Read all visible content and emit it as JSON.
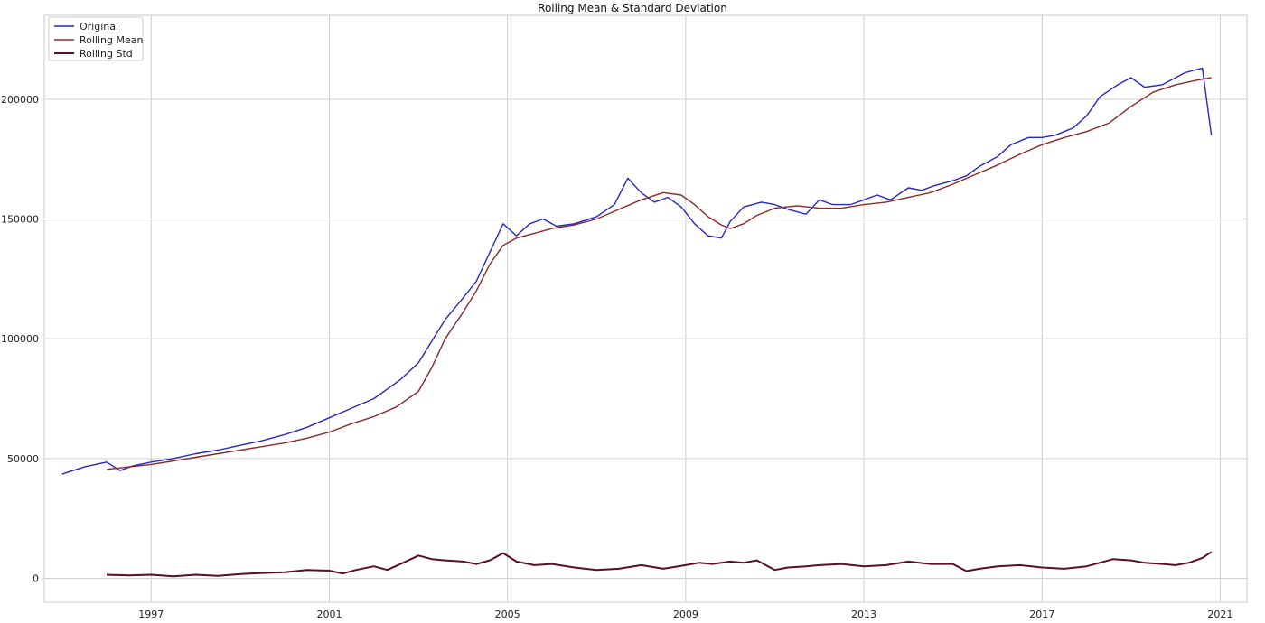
{
  "chart_data": {
    "type": "line",
    "title": "Rolling Mean & Standard Deviation",
    "xlabel": "",
    "ylabel": "",
    "xlim": [
      1994.6,
      2021.6
    ],
    "ylim": [
      -10000,
      235000
    ],
    "grid": true,
    "legend_position": "top-left",
    "x_ticks": [
      1997,
      2001,
      2005,
      2009,
      2013,
      2017,
      2021
    ],
    "x_tick_labels": [
      "1997",
      "2001",
      "2005",
      "2009",
      "2013",
      "2017",
      "2021"
    ],
    "y_ticks": [
      0,
      50000,
      100000,
      150000,
      200000
    ],
    "y_tick_labels": [
      "0",
      "50000",
      "100000",
      "150000",
      "200000"
    ],
    "series": [
      {
        "name": "Original",
        "color": "#2727c4",
        "width": 1.4,
        "x": [
          1995.0,
          1995.5,
          1996.0,
          1996.3,
          1996.6,
          1997.0,
          1997.5,
          1998.0,
          1998.5,
          1999.0,
          1999.5,
          2000.0,
          2000.5,
          2001.0,
          2001.5,
          2002.0,
          2002.3,
          2002.6,
          2003.0,
          2003.3,
          2003.6,
          2004.0,
          2004.3,
          2004.6,
          2004.9,
          2005.2,
          2005.5,
          2005.8,
          2006.1,
          2006.5,
          2007.0,
          2007.4,
          2007.7,
          2008.0,
          2008.3,
          2008.6,
          2008.9,
          2009.2,
          2009.5,
          2009.8,
          2010.0,
          2010.3,
          2010.7,
          2011.0,
          2011.3,
          2011.7,
          2012.0,
          2012.3,
          2012.7,
          2013.0,
          2013.3,
          2013.6,
          2014.0,
          2014.3,
          2014.6,
          2015.0,
          2015.3,
          2015.6,
          2016.0,
          2016.3,
          2016.7,
          2017.0,
          2017.3,
          2017.7,
          2018.0,
          2018.3,
          2018.7,
          2019.0,
          2019.3,
          2019.7,
          2020.0,
          2020.2,
          2020.4,
          2020.6,
          2020.8
        ],
        "y": [
          43500,
          46500,
          48500,
          45000,
          47000,
          48500,
          50000,
          52000,
          53500,
          55500,
          57500,
          60000,
          63000,
          67000,
          71000,
          75000,
          79000,
          83000,
          90000,
          99000,
          108000,
          117000,
          124000,
          136000,
          148000,
          143000,
          148000,
          150000,
          147000,
          148000,
          151000,
          156000,
          167000,
          161000,
          157000,
          159000,
          155000,
          148000,
          143000,
          142000,
          149000,
          155000,
          157000,
          156000,
          154000,
          152000,
          158000,
          156000,
          156000,
          158000,
          160000,
          158000,
          163000,
          162000,
          164000,
          166000,
          168000,
          172000,
          176000,
          181000,
          184000,
          184000,
          185000,
          188000,
          193000,
          201000,
          206000,
          209000,
          205000,
          206000,
          209000,
          211000,
          212000,
          213000,
          185000
        ]
      },
      {
        "name": "Rolling Mean",
        "color": "#8c2a2a",
        "width": 1.4,
        "x": [
          1996.0,
          1996.5,
          1997.0,
          1997.5,
          1998.0,
          1998.5,
          1999.0,
          1999.5,
          2000.0,
          2000.5,
          2001.0,
          2001.5,
          2002.0,
          2002.5,
          2003.0,
          2003.3,
          2003.6,
          2004.0,
          2004.3,
          2004.6,
          2004.9,
          2005.2,
          2005.6,
          2006.0,
          2006.5,
          2007.0,
          2007.5,
          2008.0,
          2008.5,
          2008.9,
          2009.2,
          2009.5,
          2009.8,
          2010.0,
          2010.3,
          2010.6,
          2011.0,
          2011.5,
          2012.0,
          2012.5,
          2013.0,
          2013.5,
          2014.0,
          2014.5,
          2015.0,
          2015.5,
          2016.0,
          2016.5,
          2017.0,
          2017.5,
          2018.0,
          2018.5,
          2019.0,
          2019.5,
          2020.0,
          2020.5,
          2020.8
        ],
        "y": [
          45500,
          46500,
          47500,
          49000,
          50500,
          52000,
          53500,
          55000,
          56500,
          58500,
          61000,
          64500,
          67500,
          71500,
          78000,
          88000,
          100000,
          111000,
          120000,
          131000,
          139000,
          142000,
          144000,
          146000,
          147500,
          150000,
          154000,
          158000,
          161000,
          160000,
          156000,
          151000,
          147500,
          146000,
          148000,
          151500,
          154500,
          155500,
          154500,
          154500,
          156000,
          157000,
          159000,
          161000,
          164500,
          168500,
          172500,
          177000,
          181000,
          184000,
          186500,
          190000,
          197000,
          203000,
          206000,
          208000,
          209000
        ]
      },
      {
        "name": "Rolling Std",
        "color": "#5a0f22",
        "width": 2.0,
        "x": [
          1996.0,
          1996.5,
          1997.0,
          1997.5,
          1998.0,
          1998.5,
          1999.0,
          1999.5,
          2000.0,
          2000.5,
          2001.0,
          2001.3,
          2001.6,
          2002.0,
          2002.3,
          2002.6,
          2003.0,
          2003.3,
          2003.6,
          2004.0,
          2004.3,
          2004.6,
          2004.9,
          2005.2,
          2005.6,
          2006.0,
          2006.5,
          2007.0,
          2007.5,
          2008.0,
          2008.5,
          2009.0,
          2009.3,
          2009.6,
          2010.0,
          2010.3,
          2010.6,
          2011.0,
          2011.3,
          2011.7,
          2012.0,
          2012.5,
          2013.0,
          2013.5,
          2014.0,
          2014.5,
          2015.0,
          2015.3,
          2015.6,
          2016.0,
          2016.5,
          2017.0,
          2017.5,
          2018.0,
          2018.3,
          2018.6,
          2019.0,
          2019.3,
          2019.7,
          2020.0,
          2020.3,
          2020.6,
          2020.8
        ],
        "y": [
          1500,
          1200,
          1500,
          800,
          1500,
          1000,
          1800,
          2200,
          2500,
          3500,
          3200,
          2000,
          3500,
          5000,
          3500,
          6000,
          9500,
          8000,
          7500,
          7000,
          6000,
          7500,
          10500,
          7000,
          5500,
          6000,
          4500,
          3500,
          4000,
          5500,
          4000,
          5500,
          6500,
          6000,
          7000,
          6500,
          7500,
          3500,
          4500,
          5000,
          5500,
          6000,
          5000,
          5500,
          7000,
          6000,
          6000,
          3000,
          4000,
          5000,
          5500,
          4500,
          4000,
          5000,
          6500,
          8000,
          7500,
          6500,
          6000,
          5500,
          6500,
          8500,
          11000
        ]
      }
    ]
  }
}
